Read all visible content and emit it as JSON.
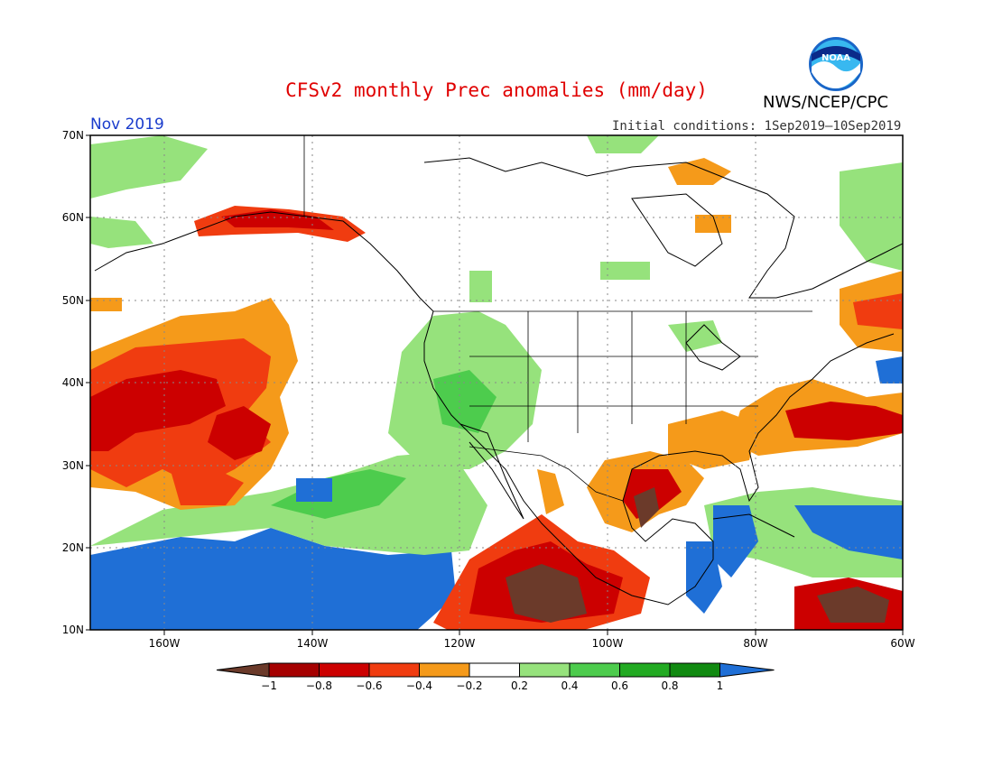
{
  "header": {
    "title": "CFSv2 monthly Prec anomalies (mm/day)",
    "agency": "NWS/NCEP/CPC",
    "logo_text": "NOAA",
    "month": "Nov 2019",
    "initial_conditions": "Initial conditions: 1Sep2019–10Sep2019"
  },
  "map": {
    "lon_range": [
      -170,
      -60
    ],
    "lat_range": [
      10,
      70
    ],
    "lat_labels": [
      "70N",
      "60N",
      "50N",
      "40N",
      "30N",
      "20N",
      "10N"
    ],
    "lon_labels": [
      "160W",
      "140W",
      "120W",
      "100W",
      "80W",
      "60W"
    ]
  },
  "colorbar": {
    "labels": [
      "−1",
      "−0.8",
      "−0.6",
      "−0.4",
      "−0.2",
      "0.2",
      "0.4",
      "0.6",
      "0.8",
      "1"
    ],
    "colors": [
      "#6b3a2a",
      "#a50000",
      "#cc0000",
      "#f03c10",
      "#f59a1a",
      "#ffffff",
      "#96e27c",
      "#4dcc4d",
      "#22aa22",
      "#118a11",
      "#1f6fd6"
    ]
  }
}
